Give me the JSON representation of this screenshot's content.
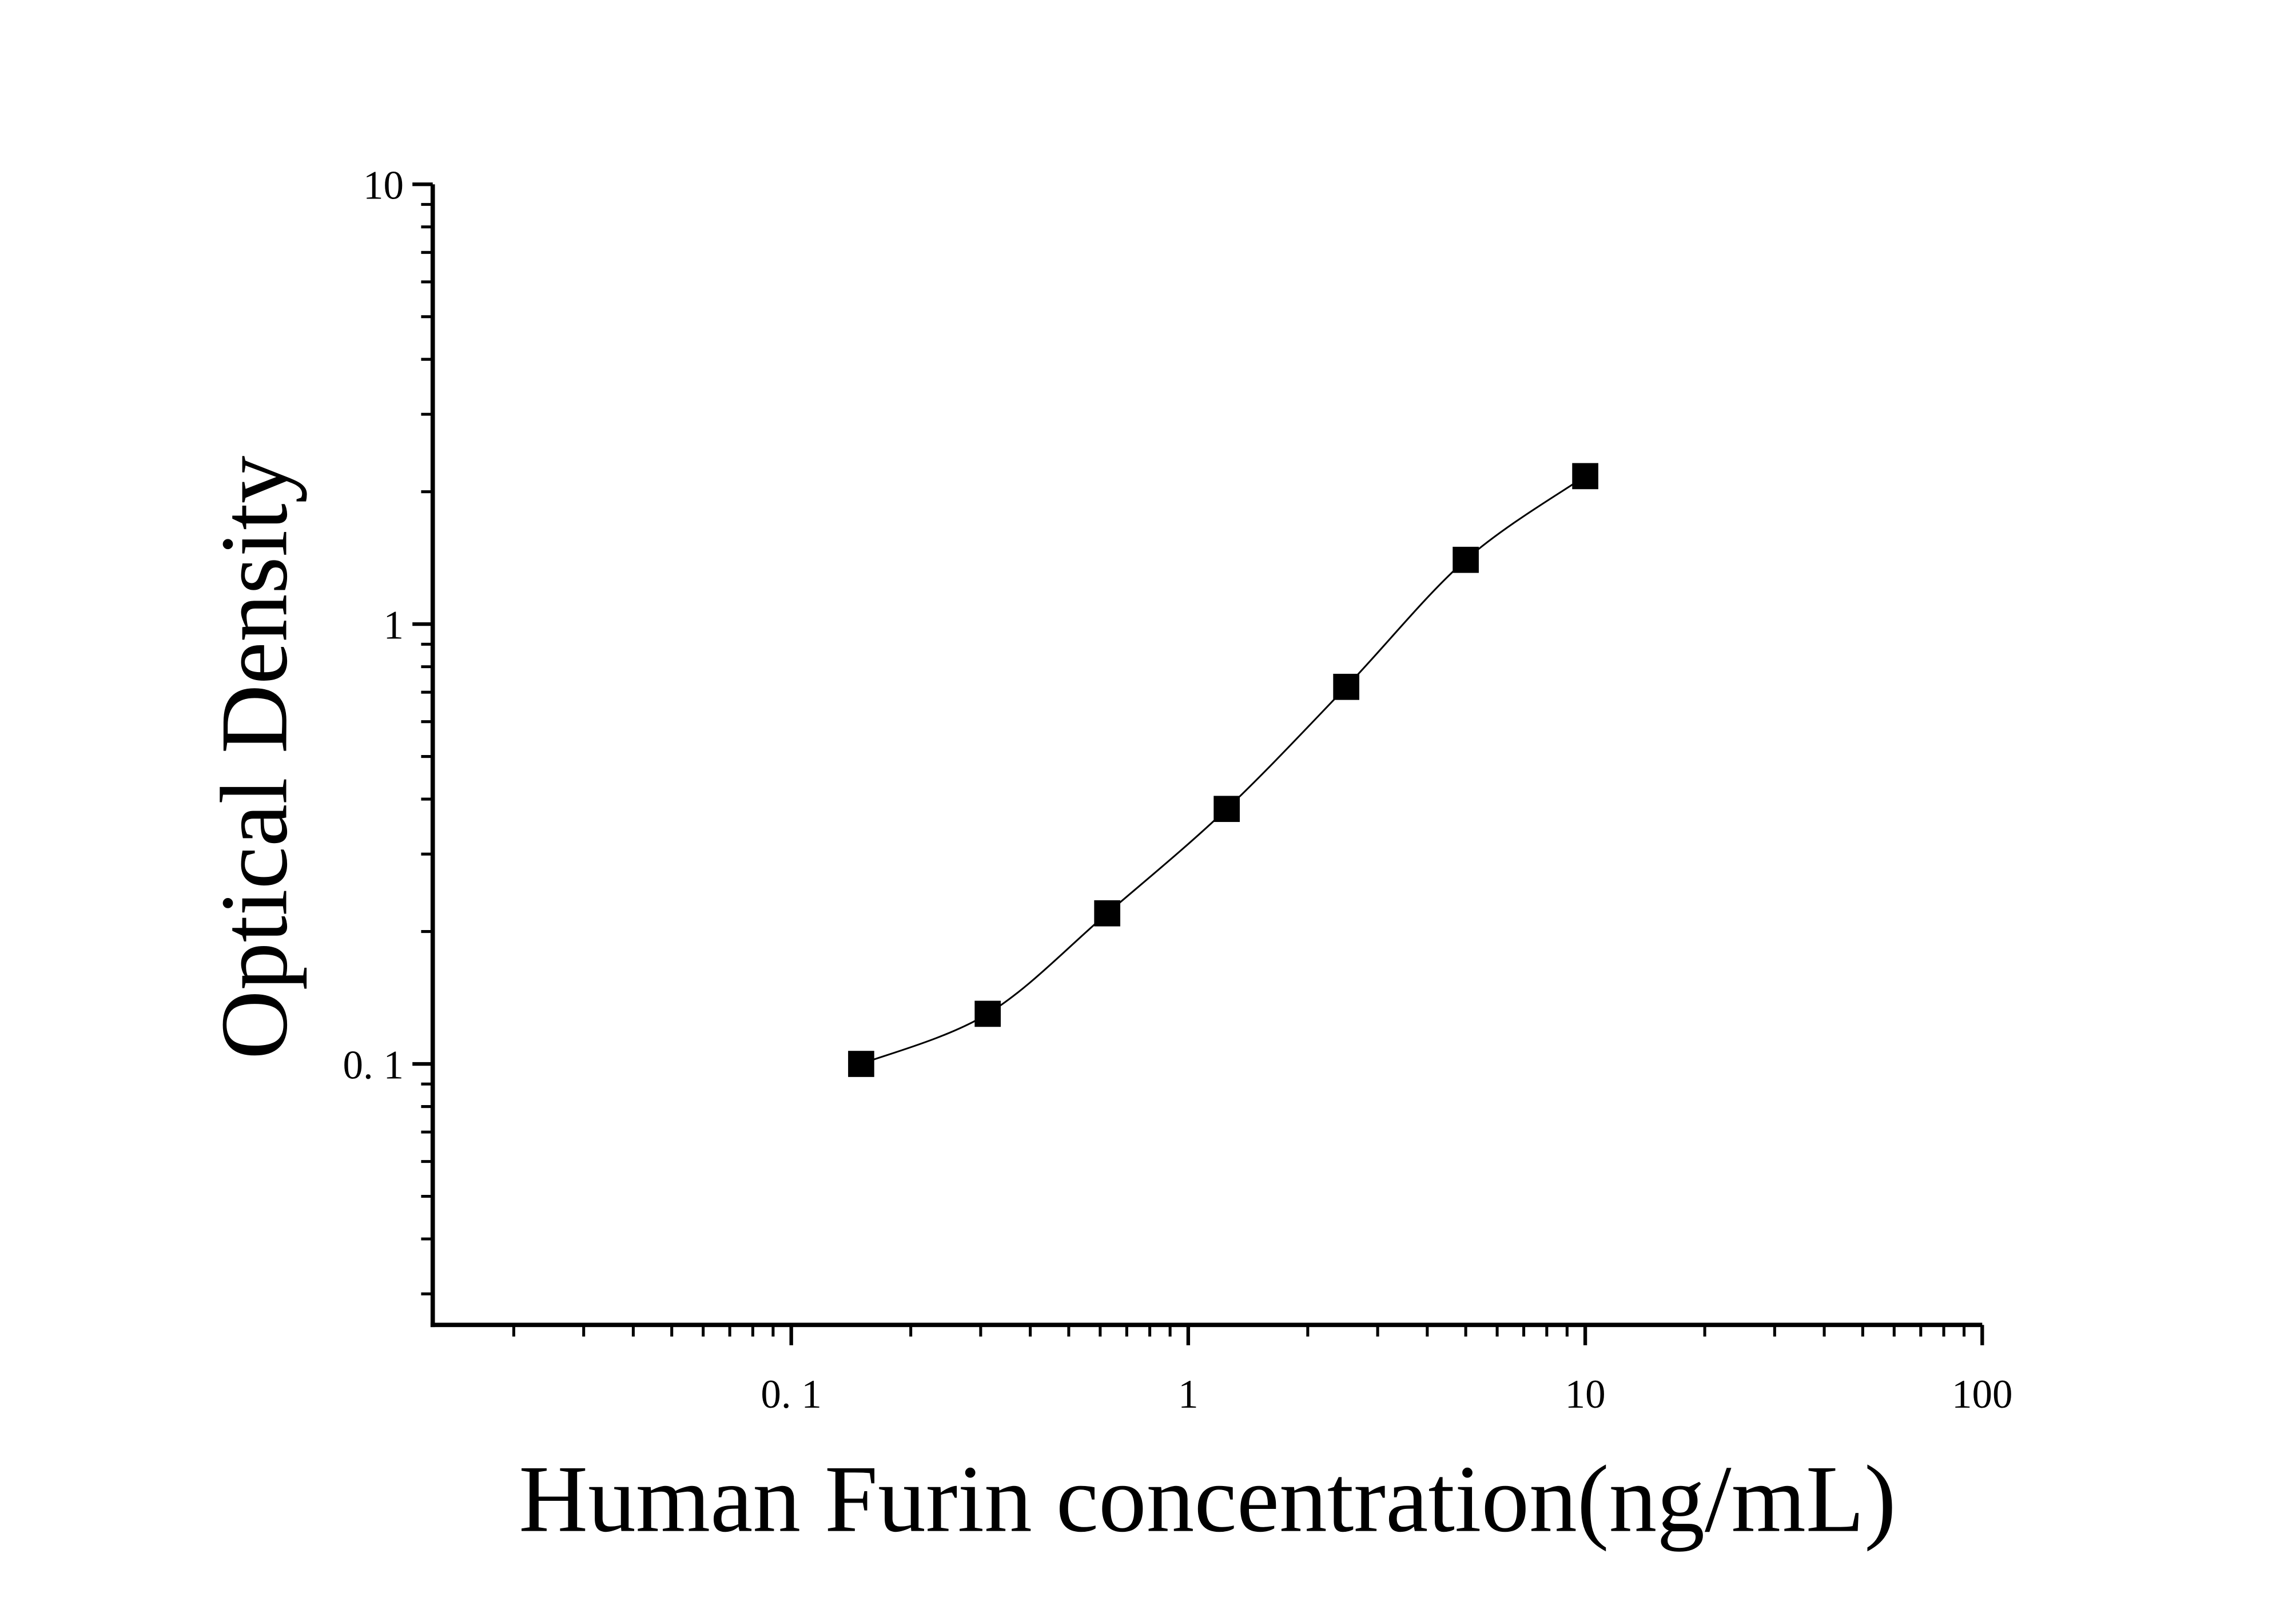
{
  "chart_data": {
    "type": "scatter",
    "x_label": "Human Furin concentration(ng/mL)",
    "y_label": "Optical Density",
    "x_log": true,
    "y_log": true,
    "xlim": [
      0.0125,
      100
    ],
    "ylim": [
      0.0255,
      10
    ],
    "xticks": [
      {
        "value": 0.1,
        "label": "0. 1"
      },
      1,
      10,
      100
    ],
    "yticks": [
      {
        "value": 0.1,
        "label": "0. 1"
      },
      1,
      10
    ],
    "x": [
      0.15,
      0.3125,
      0.625,
      1.25,
      2.5,
      5,
      10
    ],
    "series": [
      {
        "color": "#000000",
        "values": [
          0.1,
          0.13,
          0.22,
          0.38,
          0.72,
          1.4,
          2.17
        ]
      }
    ]
  }
}
